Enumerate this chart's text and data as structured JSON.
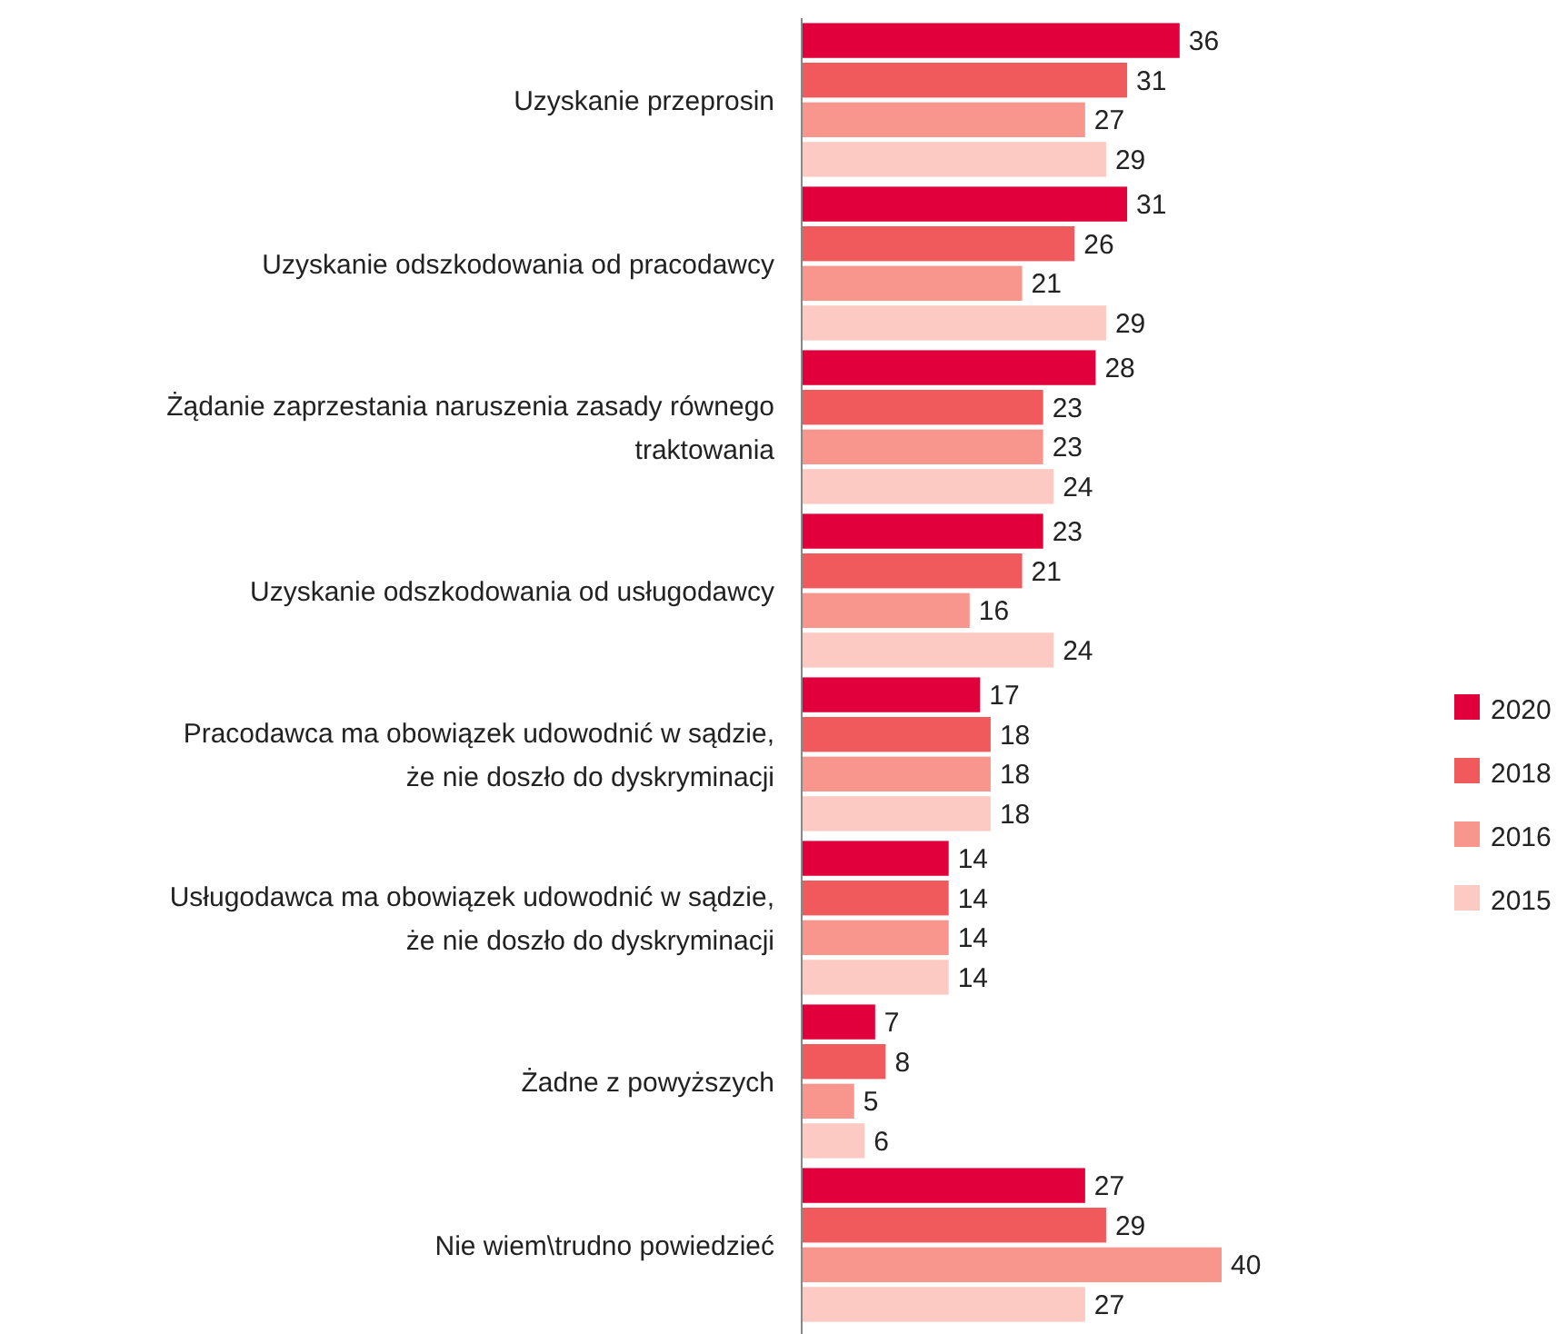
{
  "chart_data": {
    "type": "bar",
    "orientation": "horizontal",
    "data_labels": true,
    "legend": "right",
    "categories": [
      "Uzyskanie przeprosin",
      "Uzyskanie odszkodowania od pracodawcy",
      "Żądanie zaprzestania naruszenia zasady równego traktowania",
      "Uzyskanie odszkodowania od usługodawcy",
      "Pracodawca ma obowiązek udowodnić w sądzie, że nie doszło do dyskryminacji",
      "Usługodawca ma obowiązek udowodnić w sądzie, że nie doszło do dyskryminacji",
      "Żadne z powyższych",
      "Nie wiem\\trudno powiedzieć"
    ],
    "series": [
      {
        "name": "2020",
        "color": "#e2003c",
        "values": [
          36,
          31,
          28,
          23,
          17,
          14,
          7,
          27
        ]
      },
      {
        "name": "2018",
        "color": "#f05a5c",
        "values": [
          31,
          26,
          23,
          21,
          18,
          14,
          8,
          29
        ]
      },
      {
        "name": "2016",
        "color": "#f8968e",
        "values": [
          27,
          21,
          23,
          16,
          18,
          14,
          5,
          40
        ]
      },
      {
        "name": "2015",
        "color": "#fdcac3",
        "values": [
          29,
          29,
          24,
          24,
          18,
          14,
          6,
          27
        ]
      }
    ]
  }
}
